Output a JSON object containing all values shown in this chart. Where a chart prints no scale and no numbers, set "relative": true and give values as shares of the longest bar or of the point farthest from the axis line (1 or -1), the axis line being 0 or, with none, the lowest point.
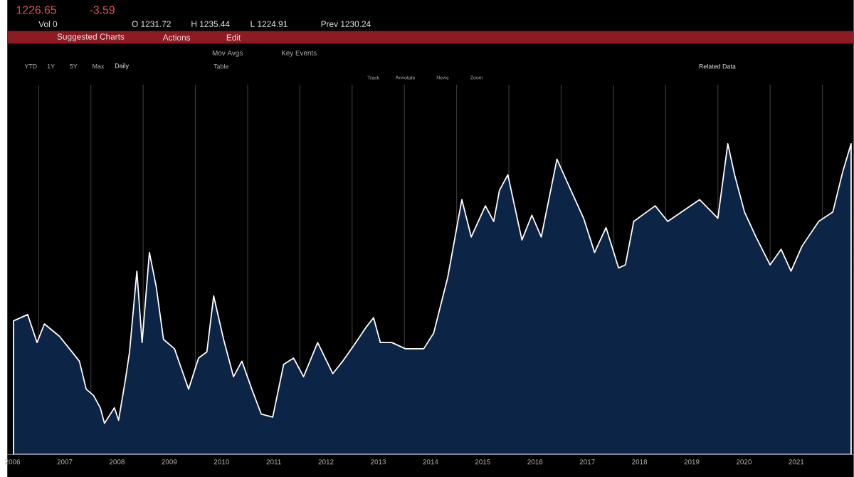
{
  "chart_data": {
    "type": "area",
    "relative": true,
    "color": "#0c2446",
    "grid": "x",
    "x": [
      2006.52,
      2006.79,
      2006.97,
      2007.11,
      2007.4,
      2007.59,
      2007.78,
      2007.91,
      2008.05,
      2008.18,
      2008.26,
      2008.45,
      2008.53,
      2008.66,
      2008.74,
      2008.88,
      2008.98,
      2009.12,
      2009.25,
      2009.39,
      2009.6,
      2009.87,
      2010.06,
      2010.22,
      2010.35,
      2010.54,
      2010.73,
      2010.89,
      2011.08,
      2011.26,
      2011.48,
      2011.69,
      2011.88,
      2012.07,
      2012.34,
      2012.63,
      2012.82,
      2013.03,
      2013.27,
      2013.41,
      2013.54,
      2013.76,
      2014.02,
      2014.21,
      2014.37,
      2014.56,
      2014.83,
      2015.1,
      2015.28,
      2015.55,
      2015.71,
      2015.82,
      2015.98,
      2016.25,
      2016.44,
      2016.62,
      2016.92,
      2017.16,
      2017.43,
      2017.64,
      2017.86,
      2018.1,
      2018.23,
      2018.39,
      2018.8,
      2019.04,
      2019.39,
      2019.65,
      2020.0,
      2020.19,
      2020.32,
      2020.51,
      2020.73,
      2021.0,
      2021.21,
      2021.4,
      2021.61,
      2021.93,
      2022.2,
      2022.39,
      2022.55
    ],
    "values": [
      0.43,
      0.45,
      0.36,
      0.42,
      0.38,
      0.34,
      0.3,
      0.21,
      0.19,
      0.15,
      0.1,
      0.15,
      0.11,
      0.24,
      0.33,
      0.59,
      0.36,
      0.65,
      0.54,
      0.37,
      0.34,
      0.21,
      0.31,
      0.33,
      0.51,
      0.37,
      0.25,
      0.3,
      0.21,
      0.13,
      0.12,
      0.29,
      0.31,
      0.25,
      0.36,
      0.26,
      0.3,
      0.35,
      0.41,
      0.44,
      0.36,
      0.36,
      0.34,
      0.34,
      0.34,
      0.39,
      0.57,
      0.82,
      0.7,
      0.8,
      0.75,
      0.85,
      0.9,
      0.69,
      0.77,
      0.7,
      0.95,
      0.86,
      0.76,
      0.65,
      0.73,
      0.6,
      0.61,
      0.75,
      0.8,
      0.75,
      0.79,
      0.82,
      0.76,
      1.0,
      0.9,
      0.78,
      0.7,
      0.61,
      0.66,
      0.59,
      0.67,
      0.75,
      0.78,
      0.91,
      1.0
    ],
    "xlim": [
      2006.4,
      2022.6
    ],
    "xticks": [
      {
        "value": 2006.5,
        "label": "2006"
      },
      {
        "value": 2007,
        "label": null
      },
      {
        "value": 2007.5,
        "label": "2007"
      },
      {
        "value": 2008,
        "label": null
      },
      {
        "value": 2008.5,
        "label": "2008"
      },
      {
        "value": 2009,
        "label": null
      },
      {
        "value": 2009.5,
        "label": "2009"
      },
      {
        "value": 2010,
        "label": null
      },
      {
        "value": 2010.5,
        "label": "2010"
      },
      {
        "value": 2011,
        "label": null
      },
      {
        "value": 2011.5,
        "label": "2011"
      },
      {
        "value": 2012,
        "label": null
      },
      {
        "value": 2012.5,
        "label": "2012"
      },
      {
        "value": 2013,
        "label": null
      },
      {
        "value": 2013.5,
        "label": "2013"
      },
      {
        "value": 2014,
        "label": null
      },
      {
        "value": 2014.5,
        "label": "2014"
      },
      {
        "value": 2015,
        "label": null
      },
      {
        "value": 2015.5,
        "label": "2015"
      },
      {
        "value": 2016,
        "label": null
      },
      {
        "value": 2016.5,
        "label": "2016"
      },
      {
        "value": 2017,
        "label": null
      },
      {
        "value": 2017.5,
        "label": "2017"
      },
      {
        "value": 2018,
        "label": null
      },
      {
        "value": 2018.5,
        "label": "2018"
      },
      {
        "value": 2019,
        "label": null
      },
      {
        "value": 2019.5,
        "label": "2019"
      },
      {
        "value": 2020,
        "label": null
      },
      {
        "value": 2020.5,
        "label": "2020"
      },
      {
        "value": 2021,
        "label": null
      },
      {
        "value": 2021.5,
        "label": "2021"
      },
      {
        "value": 2022,
        "label": null
      }
    ],
    "annotations": [
      "1226.65",
      "-3.59",
      "Vol 0",
      "O 1231.72",
      "H 1235.44",
      "L 1224.91",
      "Prev 1230.24",
      "Suggested Charts",
      "Actions",
      "Edit",
      "Mov Avgs",
      "Key Events",
      "YTD",
      "1Y",
      "5Y",
      "Max",
      "Daily",
      "Table",
      "Related Data",
      "Track",
      "Annotate",
      "News",
      "Zoom"
    ]
  }
}
